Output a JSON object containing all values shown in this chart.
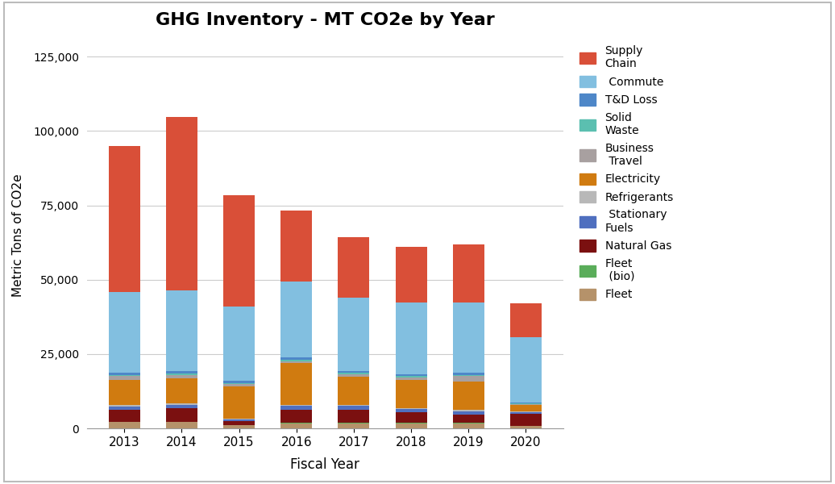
{
  "title": "GHG Inventory - MT CO2e by Year",
  "xlabel": "Fiscal Year",
  "ylabel": "Metric Tons of CO2e",
  "years": [
    2013,
    2014,
    2015,
    2016,
    2017,
    2018,
    2019,
    2020
  ],
  "segments": {
    "Fleet": [
      2200,
      2200,
      1200,
      1800,
      1800,
      1800,
      1800,
      900
    ],
    "Fleet (bio)": [
      50,
      50,
      50,
      50,
      50,
      50,
      50,
      50
    ],
    "Natural Gas": [
      4000,
      4500,
      1200,
      4500,
      4500,
      3500,
      2800,
      4000
    ],
    "Stationary Fuels": [
      1200,
      1200,
      500,
      1200,
      1200,
      1200,
      1200,
      500
    ],
    "Refrigerants": [
      400,
      400,
      300,
      400,
      400,
      400,
      400,
      250
    ],
    "Electricity": [
      8500,
      8500,
      11000,
      14000,
      9500,
      9500,
      9500,
      2200
    ],
    "Business Travel": [
      1200,
      1200,
      600,
      600,
      700,
      700,
      1800,
      200
    ],
    "Solid Waste": [
      500,
      500,
      300,
      500,
      500,
      500,
      500,
      250
    ],
    "T&D Loss": [
      800,
      800,
      800,
      800,
      700,
      700,
      700,
      400
    ],
    "Commute": [
      27000,
      27000,
      25000,
      25500,
      24500,
      24000,
      23500,
      22000
    ],
    "Supply Chain": [
      49000,
      58500,
      37500,
      23800,
      20500,
      18600,
      19700,
      11300
    ]
  },
  "colors": {
    "Fleet": "#b5926a",
    "Fleet (bio)": "#5aad5a",
    "Natural Gas": "#7b1010",
    "Stationary Fuels": "#4f6fbf",
    "Refrigerants": "#b8b8b8",
    "Electricity": "#d07b10",
    "Business Travel": "#a8a0a0",
    "Solid Waste": "#5bbfb0",
    "T&D Loss": "#4e87c8",
    "Commute": "#82bfe0",
    "Supply Chain": "#d94f38"
  },
  "ylim": [
    0,
    130000
  ],
  "yticks": [
    0,
    25000,
    50000,
    75000,
    100000,
    125000
  ],
  "figsize": [
    10.36,
    6.0
  ],
  "dpi": 100,
  "legend_labels": {
    "Supply Chain": "Supply\nChain",
    "Commute": " Commute",
    "T&D Loss": "T&D Loss",
    "Solid Waste": "Solid\nWaste",
    "Business Travel": "Business\n Travel",
    "Electricity": "Electricity",
    "Refrigerants": "Refrigerants",
    "Stationary Fuels": " Stationary\nFuels",
    "Natural Gas": "Natural Gas",
    "Fleet (bio)": "Fleet\n (bio)",
    "Fleet": "Fleet"
  }
}
